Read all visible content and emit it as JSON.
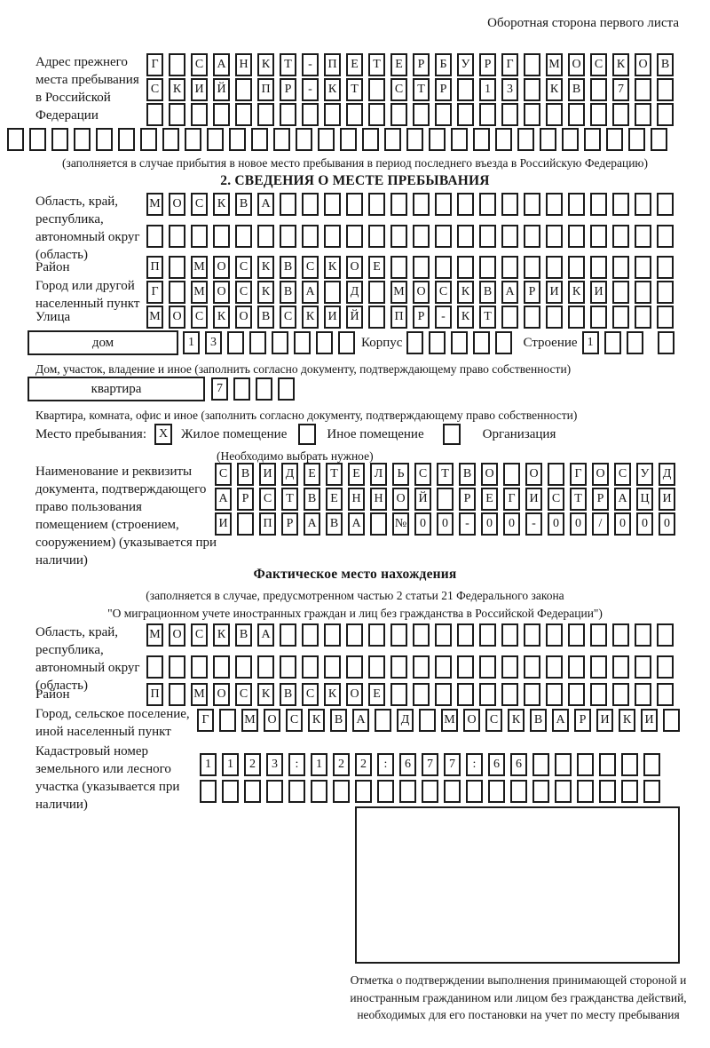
{
  "header": {
    "back_side_note": "Оборотная сторона первого листа"
  },
  "prev_address": {
    "label": "Адрес прежнего места пребывания в Российской Федерации",
    "line1": "Г САНКТ-ПЕТЕРБУРГ МОСКОВ",
    "line2": "СКИЙ ПР-КТ СТР 13 КВ 7",
    "line3": "",
    "line4": "",
    "note": "(заполняется в случае прибытия в новое место пребывания в период последнего въезда в Российскую Федерацию)"
  },
  "section2": {
    "title": "2. СВЕДЕНИЯ О МЕСТЕ ПРЕБЫВАНИЯ",
    "region_label": "Область, край, республика, автономный округ (область)",
    "region_line1": "МОСКВА",
    "region_line2": "",
    "district_label": "Район",
    "district_line": "П МОСКВСКОЕ",
    "city_label": "Город или другой населенный пункт",
    "city_line": "Г МОСКВА Д МОСКВАРИКИ",
    "street_label": "Улица",
    "street_line": "МОСКОВСКИЙ ПР-КТ",
    "house_label": "дом",
    "house_cells": "13",
    "korpus_label": "Корпус",
    "korpus_cells": "",
    "stroenie_label": "Строение",
    "stroenie_cells": "1",
    "house_note": "Дом, участок, владение и иное (заполнить согласно документу, подтверждающему право собственности)",
    "apartment_label": "квартира",
    "apartment_cells": "7",
    "apartment_note": "Квартира, комната, офис и иное (заполнить согласно документу, подтверждающему право собственности)",
    "stay": {
      "label": "Место пребывания:",
      "options": [
        {
          "label": "Жилое помещение",
          "checked": "X"
        },
        {
          "label": "Иное помещение",
          "checked": ""
        },
        {
          "label": "Организация",
          "checked": ""
        }
      ],
      "note": "(Необходимо выбрать нужное)"
    },
    "document_label": "Наименование и реквизиты документа, подтверждающего право пользования помещением (строением, сооружением) (указывается при наличии)",
    "document_line1": "СВИДЕТЕЛЬСТВО О ГОСУД",
    "document_line2": "АРСТВЕННОЙ РЕГИСТРАЦИ",
    "document_line3": "И ПРАВА №00-00-00/000"
  },
  "actual": {
    "title": "Фактическое место нахождения",
    "note_line1": "(заполняется в случае, предусмотренном частью 2 статьи 21 Федерального закона",
    "note_line2": "\"О миграционном учете иностранных граждан и лиц без гражданства в Российской Федерации\")",
    "region_label": "Область, край, республика, автономный округ (область)",
    "region_line1": "МОСКВА",
    "region_line2": "",
    "district_label": "Район",
    "district_line": "П МОСКВСКОЕ",
    "city_label": "Город, сельское поселение, иной населенный пункт",
    "city_line": "Г МОСКВА Д МОСКВАРИКИ",
    "cadastre_label": "Кадастровый номер земельного или лесного участка (указывается при наличии)",
    "cadastre_line1": "1123:122:677:66",
    "cadastre_line2": ""
  },
  "stamp": {
    "caption": "Отметка о подтверждении выполнения принимающей стороной и иностранным гражданином или лицом без гражданства действий, необходимых для его постановки на учет по месту пребывания"
  }
}
